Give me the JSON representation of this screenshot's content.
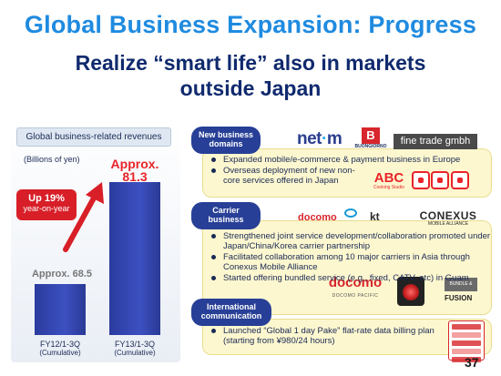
{
  "title": "Global Business Expansion: Progress",
  "subtitle": {
    "line1": "Realize “smart life” also in markets",
    "line2": "outside Japan"
  },
  "revenue": {
    "header": "Global business-related revenues",
    "unit": "(Billions of yen)",
    "growth_label": "Up 19%",
    "growth_sub": "year-on-year",
    "categories": [
      {
        "label": "FY12/1-3Q",
        "sub": "(Cumulative)"
      },
      {
        "label": "FY13/1-3Q",
        "sub": "(Cumulative)"
      }
    ],
    "value1_text": "Approx. 68.5",
    "value2_prefix": "Approx.",
    "value2_text": "81.3"
  },
  "chart_data": {
    "type": "bar",
    "categories": [
      "FY12/1-3Q (Cumulative)",
      "FY13/1-3Q (Cumulative)"
    ],
    "values": [
      68.5,
      81.3
    ],
    "title": "Global business-related revenues",
    "ylabel": "(Billions of yen)"
  },
  "sections": [
    {
      "label_line1": "New business",
      "label_line2": "domains",
      "bullets": [
        "Expanded mobile/e-commerce & payment business in Europe",
        "Overseas deployment of new non-core services offered in Japan"
      ]
    },
    {
      "label_line1": "Carrier",
      "label_line2": "business",
      "bullets": [
        "Strengthened joint service development/collaboration promoted under Japan/China/Korea carrier partnership",
        "Facilitated collaboration among 10 major carriers in Asia through Conexus Mobile Alliance",
        "Started offering bundled service (e.g., fixed, CATV, etc) in Guam"
      ]
    },
    {
      "label_line1": "International",
      "label_line2": "communication",
      "bullets": [
        "Launched “Global 1 day Pake” flat-rate data billing plan (starting from ¥980/24 hours)"
      ]
    }
  ],
  "logos": {
    "netm": "net",
    "netm_dash": "·",
    "netm_end": "m",
    "buongiorno_letter": "B",
    "buongiorno": "BUONGIORNO",
    "finetrade": "fine trade gmbh",
    "abc": "ABC",
    "abc_sub": "Cooking Studio",
    "docomo": "docomo",
    "kt": "kt",
    "conexus": "CONEXUS",
    "conexus_sub": "MOBILE ALLIANCE",
    "docomo_pacific": "docomo",
    "docomo_pacific_sub": "DOCOMO PACIFIC",
    "bundle": "BUNDLE & BOOST",
    "fusion": "FUSION"
  },
  "colors": {
    "title": "#1f8be0",
    "subtitle": "#102a6e",
    "bar": "#3c50c0",
    "accent_red": "#d81f28",
    "section_bg": "#fdf7cf",
    "pill": "#273f96"
  },
  "page_number": "37"
}
